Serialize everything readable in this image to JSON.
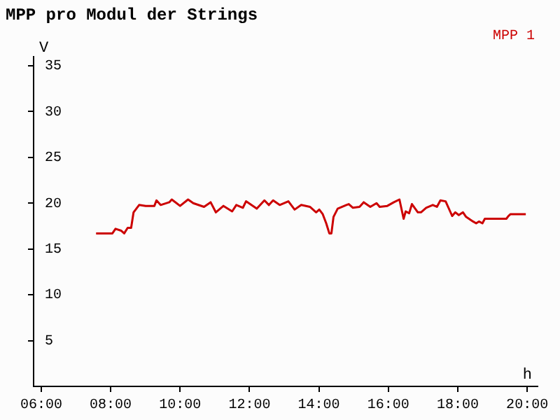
{
  "chart_data": {
    "type": "line",
    "title": "MPP pro Modul der Strings",
    "xlabel": "h",
    "ylabel": "V",
    "legend": "top right",
    "grid": false,
    "marker": "none",
    "line_style": "solid",
    "xlim": [
      5.78,
      20.3
    ],
    "ylim": [
      0,
      36
    ],
    "xticks": [
      {
        "value": 6,
        "label": "06:00"
      },
      {
        "value": 8,
        "label": "08:00"
      },
      {
        "value": 10,
        "label": "10:00"
      },
      {
        "value": 12,
        "label": "12:00"
      },
      {
        "value": 14,
        "label": "14:00"
      },
      {
        "value": 16,
        "label": "16:00"
      },
      {
        "value": 18,
        "label": "18:00"
      },
      {
        "value": 20,
        "label": "20:00"
      }
    ],
    "yticks": [
      5,
      10,
      15,
      20,
      25,
      30,
      35
    ],
    "series": [
      {
        "name": "MPP 1",
        "color": "#cc0000",
        "x": [
          7.58,
          8.05,
          8.14,
          8.3,
          8.39,
          8.49,
          8.59,
          8.66,
          8.82,
          9.01,
          9.26,
          9.32,
          9.44,
          9.69,
          9.76,
          10.0,
          10.23,
          10.38,
          10.69,
          10.88,
          11.03,
          11.25,
          11.5,
          11.62,
          11.81,
          11.9,
          12.21,
          12.43,
          12.56,
          12.68,
          12.87,
          13.12,
          13.3,
          13.49,
          13.74,
          13.92,
          14.01,
          14.11,
          14.21,
          14.3,
          14.36,
          14.42,
          14.54,
          14.79,
          14.86,
          14.98,
          15.17,
          15.29,
          15.48,
          15.66,
          15.75,
          15.97,
          16.16,
          16.32,
          16.44,
          16.5,
          16.6,
          16.68,
          16.85,
          16.94,
          17.09,
          17.28,
          17.4,
          17.5,
          17.65,
          17.78,
          17.84,
          17.93,
          18.03,
          18.15,
          18.24,
          18.44,
          18.53,
          18.61,
          18.71,
          18.78,
          19.02,
          19.4,
          19.46,
          19.52,
          19.96
        ],
        "values": [
          16.7,
          16.7,
          17.2,
          17.0,
          16.7,
          17.3,
          17.3,
          19.0,
          19.8,
          19.7,
          19.7,
          20.3,
          19.8,
          20.1,
          20.4,
          19.7,
          20.4,
          20.0,
          19.6,
          20.1,
          19.0,
          19.7,
          19.1,
          19.8,
          19.5,
          20.2,
          19.4,
          20.3,
          19.8,
          20.3,
          19.8,
          20.2,
          19.3,
          19.8,
          19.6,
          19.0,
          19.3,
          18.8,
          17.8,
          16.7,
          16.7,
          18.5,
          19.4,
          19.8,
          19.9,
          19.5,
          19.6,
          20.1,
          19.6,
          20.0,
          19.6,
          19.7,
          20.1,
          20.4,
          18.3,
          19.1,
          18.9,
          19.9,
          19.0,
          19.0,
          19.5,
          19.8,
          19.6,
          20.3,
          20.2,
          19.1,
          18.6,
          19.0,
          18.7,
          19.0,
          18.5,
          18.0,
          17.8,
          18.0,
          17.8,
          18.3,
          18.3,
          18.3,
          18.6,
          18.8,
          18.8
        ]
      }
    ]
  }
}
